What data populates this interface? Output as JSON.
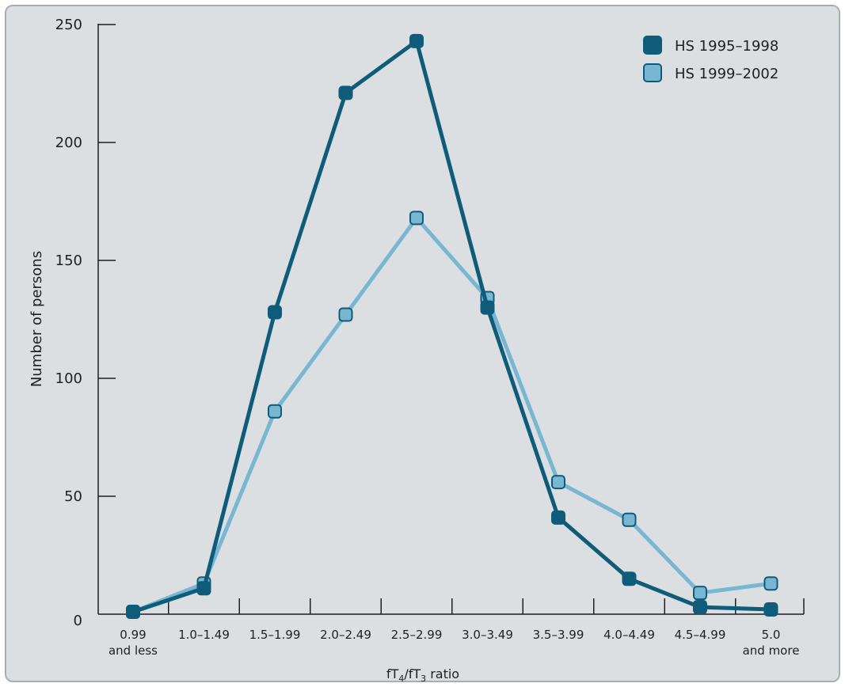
{
  "chart_data": {
    "type": "line",
    "categories": [
      [
        "0.99",
        "and less"
      ],
      [
        "1.0–1.49"
      ],
      [
        "1.5–1.99"
      ],
      [
        "2.0–2.49"
      ],
      [
        "2.5–2.99"
      ],
      [
        "3.0–3.49"
      ],
      [
        "3.5–3.99"
      ],
      [
        "4.0–4.49"
      ],
      [
        "4.5–4.99"
      ],
      [
        "5.0",
        "and more"
      ]
    ],
    "series": [
      {
        "name": "HS 1995–1998",
        "color": "#0f5c7a",
        "values": [
          1,
          11,
          128,
          221,
          243,
          130,
          41,
          15,
          3,
          2
        ]
      },
      {
        "name": "HS 1999–2002",
        "color": "#79b6d2",
        "values": [
          1,
          13,
          86,
          127,
          168,
          134,
          56,
          40,
          9,
          13
        ]
      }
    ],
    "ylim": [
      0,
      250
    ],
    "yticks": [
      0,
      50,
      100,
      150,
      200,
      250
    ],
    "ylabel": "Number of persons",
    "xlabel_parts": [
      "fT",
      "4",
      "/fT",
      "3",
      " ratio"
    ],
    "legend_position": "top-right",
    "grid": false,
    "colors": {
      "background": "#dcdfe2",
      "axis": "#1f1f1f",
      "border": "#a9aeb3"
    }
  }
}
